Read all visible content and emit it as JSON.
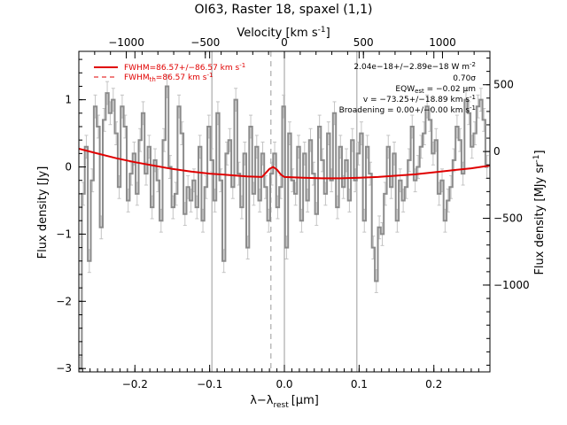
{
  "chart_data": {
    "type": "line",
    "title": "OI63, Raster 18, spaxel (1,1)",
    "xlabel": "λ−λ",
    "xlabel_sub": "rest",
    "xlabel_unit": "[μm]",
    "ylabel": "Flux density [Jy]",
    "x2label": "Velocity [km s",
    "x2label_sup": "-1",
    "x2label_end": "]",
    "y2label": "Flux density [MJy sr",
    "y2label_sup": "-1",
    "y2label_end": "]",
    "xlim": [
      -0.275,
      0.275
    ],
    "ylim": [
      -3.05,
      1.72
    ],
    "x2lim": [
      -1300,
      1300
    ],
    "y2lim": [
      -1650,
      750
    ],
    "x_ticks": [
      -0.2,
      -0.1,
      0.0,
      0.1,
      0.2
    ],
    "x_tick_labels": [
      "−0.2",
      "−0.1",
      "0.0",
      "0.1",
      "0.2"
    ],
    "y_ticks": [
      -3,
      -2,
      -1,
      0,
      1
    ],
    "y_tick_labels": [
      "−3",
      "−2",
      "−1",
      "0",
      "1"
    ],
    "x2_ticks": [
      -1000,
      -500,
      0,
      500,
      1000
    ],
    "x2_tick_labels": [
      "−1000",
      "−500",
      "0",
      "500",
      "1000"
    ],
    "y2_ticks": [
      -1000,
      -500,
      0,
      500
    ],
    "y2_tick_labels": [
      "−1000",
      "−500",
      "0",
      "500"
    ],
    "vertical_lines": [
      -0.097,
      0.0,
      0.097
    ],
    "dashed_line": -0.018,
    "legend": {
      "placement": "top-left",
      "entries": [
        {
          "text": "FWHM=86.57+/−86.57 km s",
          "sup": "-1",
          "style": "solid"
        },
        {
          "text": "FWHM",
          "sub": "th",
          "text2": "=86.57 km s",
          "sup": "-1",
          "style": "dashed"
        }
      ]
    },
    "annotations": [
      {
        "text": "2.04e−18+/−2.89e−18 W m",
        "sup": "-2"
      },
      {
        "text": "0.70σ"
      },
      {
        "text": "EQW",
        "sub": "est",
        "text2": " = −0.02 μm"
      },
      {
        "text": "v = −73.25+/−18.89 km s",
        "sup": "-1"
      },
      {
        "text": "Broadening = 0.00+/−0.00 km s",
        "sup": "-1"
      }
    ],
    "series": [
      {
        "style": "step",
        "color": "#8c8c8c",
        "error": 0.17,
        "x": [
          -0.273,
          -0.269,
          -0.265,
          -0.261,
          -0.257,
          -0.253,
          -0.249,
          -0.245,
          -0.241,
          -0.237,
          -0.233,
          -0.229,
          -0.225,
          -0.221,
          -0.217,
          -0.213,
          -0.209,
          -0.205,
          -0.201,
          -0.197,
          -0.193,
          -0.189,
          -0.185,
          -0.181,
          -0.177,
          -0.173,
          -0.169,
          -0.165,
          -0.161,
          -0.157,
          -0.153,
          -0.149,
          -0.145,
          -0.141,
          -0.137,
          -0.133,
          -0.129,
          -0.125,
          -0.121,
          -0.117,
          -0.113,
          -0.109,
          -0.105,
          -0.101,
          -0.097,
          -0.093,
          -0.089,
          -0.085,
          -0.081,
          -0.077,
          -0.073,
          -0.069,
          -0.065,
          -0.061,
          -0.057,
          -0.053,
          -0.049,
          -0.045,
          -0.041,
          -0.037,
          -0.033,
          -0.029,
          -0.025,
          -0.021,
          -0.017,
          -0.013,
          -0.009,
          -0.005,
          -0.001,
          0.003,
          0.007,
          0.011,
          0.015,
          0.019,
          0.023,
          0.027,
          0.031,
          0.035,
          0.039,
          0.043,
          0.047,
          0.051,
          0.055,
          0.059,
          0.063,
          0.067,
          0.071,
          0.075,
          0.079,
          0.083,
          0.087,
          0.091,
          0.095,
          0.099,
          0.103,
          0.107,
          0.111,
          0.115,
          0.119,
          0.123,
          0.127,
          0.131,
          0.135,
          0.139,
          0.143,
          0.147,
          0.151,
          0.155,
          0.159,
          0.163,
          0.167,
          0.171,
          0.175,
          0.179,
          0.183,
          0.187,
          0.191,
          0.195,
          0.199,
          0.203,
          0.207,
          0.211,
          0.215,
          0.219,
          0.223,
          0.227,
          0.231,
          0.235,
          0.239,
          0.243,
          0.247,
          0.251,
          0.255,
          0.259,
          0.263,
          0.267,
          0.271
        ],
        "y": [
          -3.0,
          -0.4,
          0.3,
          -1.4,
          -0.2,
          0.9,
          0.6,
          -0.9,
          0.7,
          1.1,
          0.8,
          1.0,
          0.5,
          -0.3,
          0.9,
          0.6,
          -0.5,
          -0.1,
          0.2,
          -0.4,
          0.4,
          0.8,
          -0.1,
          0.3,
          -0.6,
          0.1,
          -0.2,
          -0.8,
          0.4,
          1.2,
          0.0,
          -0.6,
          -0.4,
          0.9,
          0.5,
          -0.7,
          -0.3,
          -0.5,
          -0.2,
          -0.6,
          0.3,
          -0.8,
          -0.3,
          0.6,
          0.1,
          -0.5,
          0.8,
          -0.2,
          -1.4,
          0.2,
          0.4,
          -0.3,
          1.0,
          -0.1,
          -0.6,
          0.2,
          -1.2,
          0.6,
          -0.4,
          0.3,
          -0.5,
          0.2,
          -0.3,
          -0.8,
          -0.1,
          0.2,
          -0.6,
          -0.3,
          0.9,
          -1.2,
          0.5,
          -0.2,
          -0.4,
          0.3,
          -0.8,
          0.2,
          -0.5,
          0.4,
          -0.1,
          -0.7,
          0.6,
          0.1,
          -0.4,
          0.5,
          -0.2,
          0.8,
          -0.6,
          0.3,
          -0.3,
          0.1,
          -0.5,
          0.4,
          -0.2,
          0.2,
          0.5,
          -0.8,
          0.3,
          -0.1,
          -1.2,
          -1.7,
          -0.9,
          -1.0,
          -0.4,
          0.3,
          -0.3,
          0.2,
          -0.8,
          -0.2,
          -0.5,
          -0.3,
          0.1,
          0.6,
          -0.2,
          0.0,
          0.3,
          0.5,
          0.9,
          0.7,
          0.2,
          0.4,
          -0.4,
          -0.2,
          -0.8,
          -0.5,
          -0.3,
          0.1,
          0.6,
          0.4,
          -0.1,
          1.0,
          0.8,
          0.3,
          0.5,
          0.9,
          1.0,
          0.7,
          0.0
        ]
      },
      {
        "style": "line",
        "color": "#e00000",
        "x": [
          -0.275,
          -0.25,
          -0.225,
          -0.2,
          -0.175,
          -0.15,
          -0.125,
          -0.1,
          -0.075,
          -0.05,
          -0.03,
          -0.025,
          -0.02,
          -0.015,
          -0.01,
          -0.005,
          0.0,
          0.025,
          0.05,
          0.075,
          0.1,
          0.125,
          0.15,
          0.175,
          0.2,
          0.225,
          0.25,
          0.275
        ],
        "y": [
          0.27,
          0.2,
          0.13,
          0.07,
          0.02,
          -0.03,
          -0.07,
          -0.1,
          -0.12,
          -0.14,
          -0.15,
          -0.09,
          -0.03,
          0.0,
          -0.04,
          -0.11,
          -0.15,
          -0.16,
          -0.17,
          -0.17,
          -0.16,
          -0.15,
          -0.13,
          -0.11,
          -0.08,
          -0.05,
          -0.02,
          0.02
        ]
      }
    ]
  }
}
